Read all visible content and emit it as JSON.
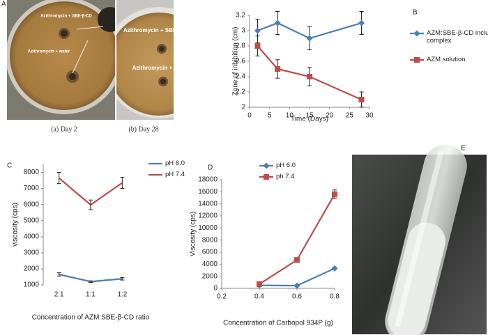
{
  "figure_a": {
    "panel": "A",
    "plate_labels": [
      "Azithromycin + SBE-β-CD",
      "Azithromycin + water",
      "Azithromycin + SBE-β-CD",
      "Azithromycin + water"
    ],
    "captions": [
      "(a) Day 2",
      "(b) Day 28"
    ]
  },
  "figure_e": {
    "panel": "E"
  },
  "chart_data": [
    {
      "type": "line",
      "panel": "B",
      "x_label": "Time (Days)",
      "y_label": "Zone of inhibition (cm)",
      "x": [
        2,
        7,
        15,
        28
      ],
      "xlim": [
        0,
        30
      ],
      "xticks": [
        0,
        5,
        10,
        15,
        20,
        25,
        30
      ],
      "ylim": [
        2,
        3.2
      ],
      "yticks": [
        2,
        2.2,
        2.4,
        2.6,
        2.8,
        3,
        3.2
      ],
      "markers": true,
      "legend": "right",
      "series": [
        {
          "name": "AZM:SBE-β-CD inclusion complex",
          "color": "#4a7ebb",
          "marker": "diamond",
          "values": [
            3.0,
            3.1,
            2.9,
            3.1
          ],
          "errors": [
            0.15,
            0.15,
            0.15,
            0.15
          ]
        },
        {
          "name": "AZM solution",
          "color": "#be4b48",
          "marker": "square",
          "values": [
            2.8,
            2.5,
            2.4,
            2.1
          ],
          "errors": [
            0.13,
            0.12,
            0.12,
            0.1
          ]
        }
      ]
    },
    {
      "type": "line",
      "panel": "C",
      "x_label": "Concentration of AZM:SBE-β-CD ratio",
      "y_label": "viscosity (cps)",
      "categories": [
        "2:1",
        "1:1",
        "1:2"
      ],
      "ylim": [
        1000,
        8500
      ],
      "yticks": [
        1000,
        2000,
        3000,
        4000,
        5000,
        6000,
        7000,
        8000
      ],
      "markers": false,
      "legend": "upper right",
      "series": [
        {
          "name": "pH 6.0",
          "color": "#4a7ebb",
          "values": [
            1650,
            1200,
            1380
          ],
          "errors": [
            100,
            50,
            80
          ]
        },
        {
          "name": "pH 7.4",
          "color": "#be4b48",
          "values": [
            7650,
            5980,
            7350
          ],
          "errors": [
            350,
            300,
            350
          ]
        }
      ]
    },
    {
      "type": "line",
      "panel": "D",
      "x_label": "Concentration of Carbopol 934P (g)",
      "y_label": "Viscosity (cps)",
      "x": [
        0.4,
        0.6,
        0.8
      ],
      "xlim": [
        0.2,
        0.8
      ],
      "xticks": [
        0.2,
        0.4,
        0.6,
        0.8
      ],
      "ylim": [
        0,
        18000
      ],
      "yticks": [
        0,
        2000,
        4000,
        6000,
        8000,
        10000,
        12000,
        14000,
        16000,
        18000
      ],
      "markers": true,
      "legend": "upper left",
      "series": [
        {
          "name": "pH 6.0",
          "color": "#4a7ebb",
          "marker": "diamond",
          "values": [
            500,
            450,
            3300
          ]
        },
        {
          "name": "ph 7.4",
          "color": "#be4b48",
          "marker": "square",
          "values": [
            700,
            4700,
            15600
          ],
          "errors": [
            null,
            null,
            700
          ]
        }
      ]
    }
  ]
}
